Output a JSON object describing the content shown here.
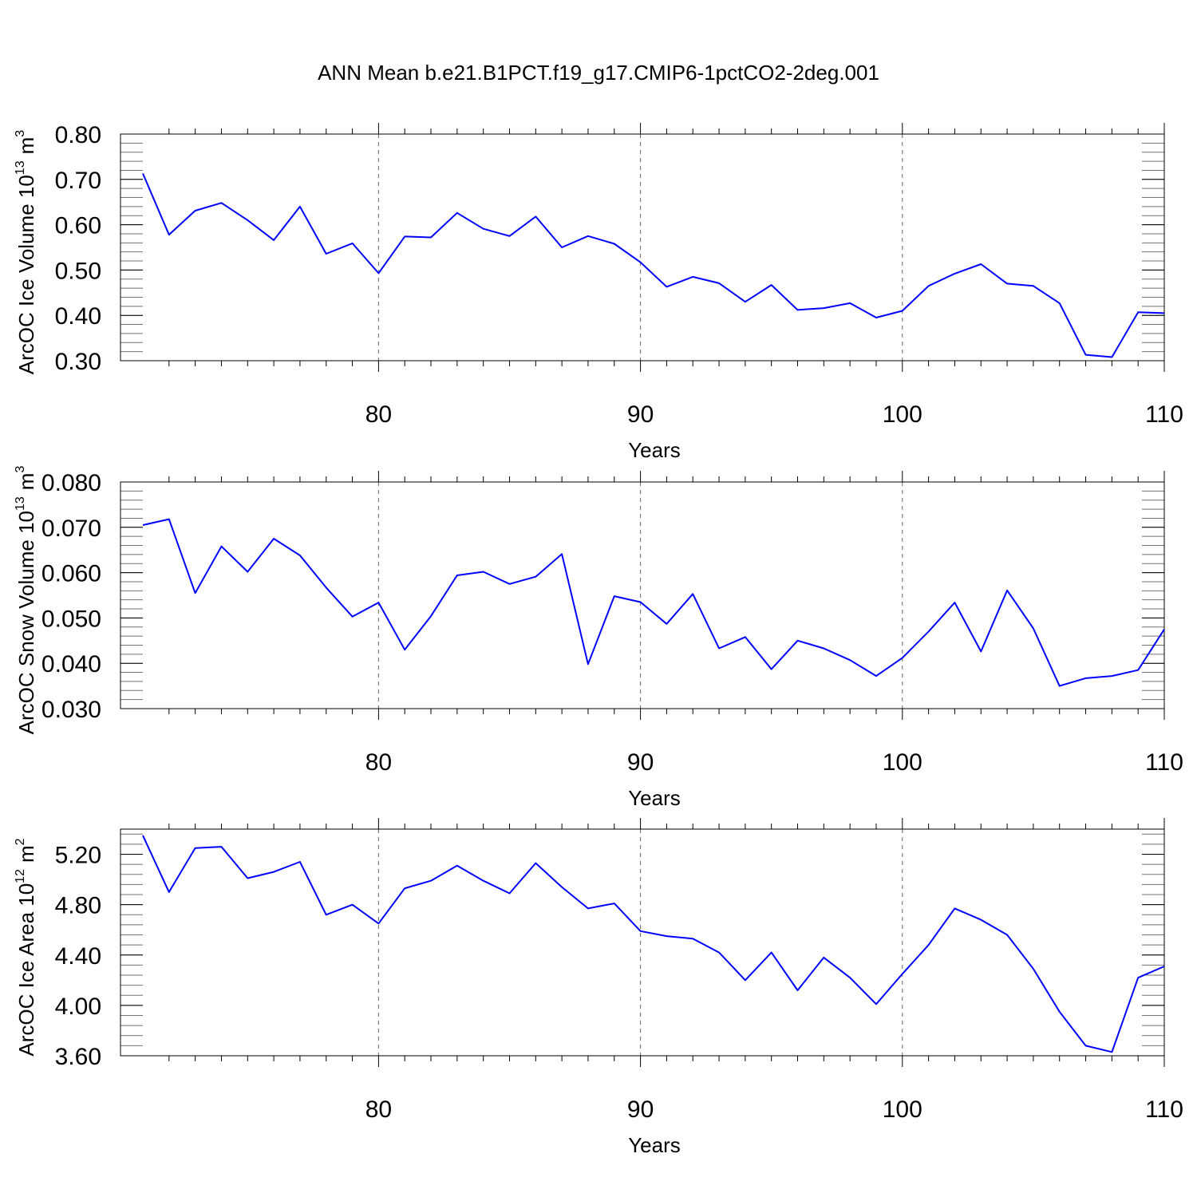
{
  "title": "ANN Mean b.e21.B1PCT.f19_g17.CMIP6-1pctCO2-2deg.001",
  "colors": {
    "series": "#0000ff",
    "axis": "#000000"
  },
  "chart_data": [
    {
      "type": "line",
      "ylabel_main": "ArcOC Ice Volume 10",
      "ylabel_exp": "13",
      "ylabel_unit": "m",
      "ylabel_unit_exp": "3",
      "xlabel": "Years",
      "xlim": [
        71,
        110
      ],
      "ylim": [
        0.3,
        0.8
      ],
      "yticks": [
        0.3,
        0.4,
        0.5,
        0.6,
        0.7,
        0.8
      ],
      "ytick_labels": [
        "0.30",
        "0.40",
        "0.50",
        "0.60",
        "0.70",
        "0.80"
      ],
      "ytick_minor_step": 0.02,
      "xticks": [
        80,
        90,
        100,
        110
      ],
      "xtick_labels": [
        "80",
        "90",
        "100",
        "110"
      ],
      "xtick_minor_step": 1,
      "xgrid": [
        80,
        90,
        100
      ],
      "x": [
        71,
        72,
        73,
        74,
        75,
        76,
        77,
        78,
        79,
        80,
        81,
        82,
        83,
        84,
        85,
        86,
        87,
        88,
        89,
        90,
        91,
        92,
        93,
        94,
        95,
        96,
        97,
        98,
        99,
        100,
        101,
        102,
        103,
        104,
        105,
        106,
        107,
        108,
        109,
        110
      ],
      "values": [
        0.713,
        0.578,
        0.631,
        0.648,
        0.61,
        0.566,
        0.64,
        0.536,
        0.559,
        0.493,
        0.574,
        0.572,
        0.626,
        0.591,
        0.575,
        0.618,
        0.55,
        0.575,
        0.558,
        0.517,
        0.463,
        0.485,
        0.471,
        0.43,
        0.467,
        0.412,
        0.416,
        0.427,
        0.395,
        0.41,
        0.465,
        0.492,
        0.513,
        0.47,
        0.465,
        0.427,
        0.313,
        0.308,
        0.407,
        0.405
      ]
    },
    {
      "type": "line",
      "ylabel_main": "ArcOC Snow Volume 10",
      "ylabel_exp": "13",
      "ylabel_unit": "m",
      "ylabel_unit_exp": "3",
      "xlabel": "Years",
      "xlim": [
        71,
        110
      ],
      "ylim": [
        0.03,
        0.08
      ],
      "yticks": [
        0.03,
        0.04,
        0.05,
        0.06,
        0.07,
        0.08
      ],
      "ytick_labels": [
        "0.030",
        "0.040",
        "0.050",
        "0.060",
        "0.070",
        "0.080"
      ],
      "ytick_minor_step": 0.002,
      "xticks": [
        80,
        90,
        100,
        110
      ],
      "xtick_labels": [
        "80",
        "90",
        "100",
        "110"
      ],
      "xtick_minor_step": 1,
      "xgrid": [
        80,
        90,
        100
      ],
      "x": [
        71,
        72,
        73,
        74,
        75,
        76,
        77,
        78,
        79,
        80,
        81,
        82,
        83,
        84,
        85,
        86,
        87,
        88,
        89,
        90,
        91,
        92,
        93,
        94,
        95,
        96,
        97,
        98,
        99,
        100,
        101,
        102,
        103,
        104,
        105,
        106,
        107,
        108,
        109,
        110
      ],
      "values": [
        0.0705,
        0.0718,
        0.0555,
        0.0658,
        0.0602,
        0.0675,
        0.0638,
        0.0567,
        0.0503,
        0.0534,
        0.043,
        0.0504,
        0.0594,
        0.0602,
        0.0575,
        0.0591,
        0.0641,
        0.0398,
        0.0548,
        0.0535,
        0.0487,
        0.0553,
        0.0433,
        0.0458,
        0.0387,
        0.045,
        0.0433,
        0.0407,
        0.0372,
        0.0412,
        0.047,
        0.0534,
        0.0426,
        0.0561,
        0.0477,
        0.035,
        0.0367,
        0.0372,
        0.0385,
        0.0475
      ]
    },
    {
      "type": "line",
      "ylabel_main": "ArcOC Ice Area 10",
      "ylabel_exp": "12",
      "ylabel_unit": "m",
      "ylabel_unit_exp": "2",
      "xlabel": "Years",
      "xlim": [
        71,
        110
      ],
      "ylim": [
        3.6,
        5.4
      ],
      "yticks": [
        3.6,
        4.0,
        4.4,
        4.8,
        5.2
      ],
      "ytick_labels": [
        "3.60",
        "4.00",
        "4.40",
        "4.80",
        "5.20"
      ],
      "ytick_minor_step": 0.08,
      "xticks": [
        80,
        90,
        100,
        110
      ],
      "xtick_labels": [
        "80",
        "90",
        "100",
        "110"
      ],
      "xtick_minor_step": 1,
      "xgrid": [
        80,
        90,
        100
      ],
      "x": [
        71,
        72,
        73,
        74,
        75,
        76,
        77,
        78,
        79,
        80,
        81,
        82,
        83,
        84,
        85,
        86,
        87,
        88,
        89,
        90,
        91,
        92,
        93,
        94,
        95,
        96,
        97,
        98,
        99,
        100,
        101,
        102,
        103,
        104,
        105,
        106,
        107,
        108,
        109,
        110
      ],
      "values": [
        5.35,
        4.9,
        5.25,
        5.26,
        5.01,
        5.06,
        5.14,
        4.72,
        4.8,
        4.65,
        4.93,
        4.99,
        5.11,
        4.99,
        4.89,
        5.13,
        4.94,
        4.77,
        4.81,
        4.59,
        4.55,
        4.53,
        4.42,
        4.2,
        4.42,
        4.12,
        4.38,
        4.22,
        4.01,
        4.25,
        4.48,
        4.77,
        4.68,
        4.56,
        4.29,
        3.95,
        3.68,
        3.63,
        4.22,
        4.31
      ]
    }
  ]
}
